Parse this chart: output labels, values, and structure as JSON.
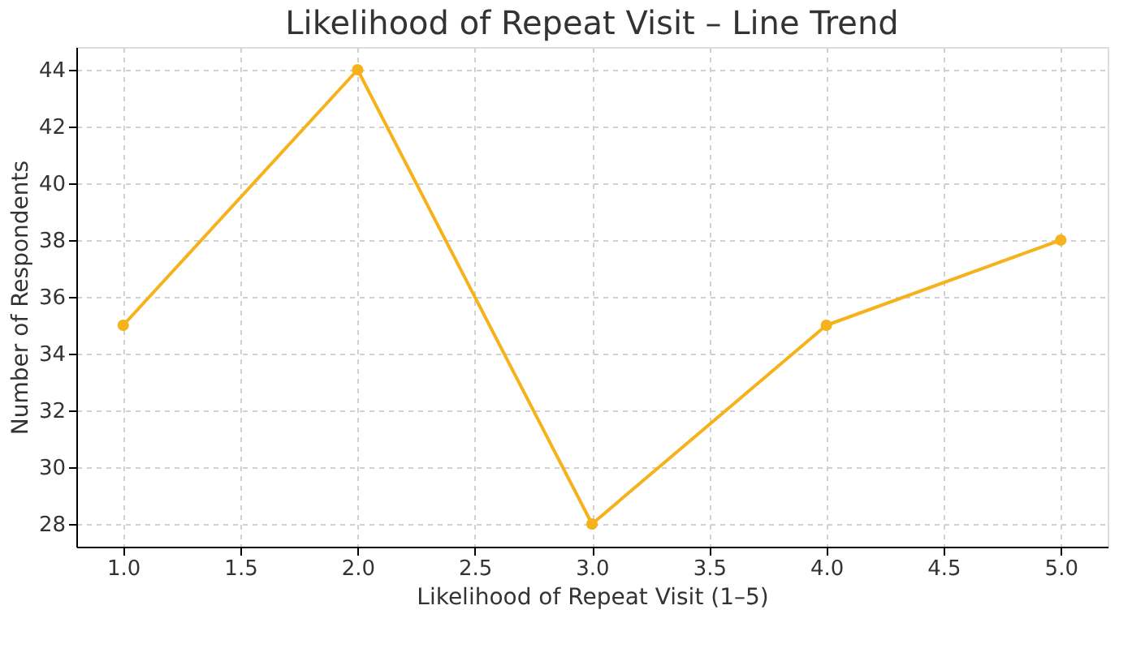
{
  "chart_data": {
    "type": "line",
    "title": "Likelihood of Repeat Visit – Line Trend",
    "xlabel": "Likelihood of Repeat Visit (1–5)",
    "ylabel": "Number of Respondents",
    "x": [
      1,
      2,
      3,
      4,
      5
    ],
    "series": [
      {
        "color": "#f5b21b",
        "values": [
          35,
          44,
          28,
          35,
          38
        ]
      }
    ],
    "xlim": [
      0.8,
      5.2
    ],
    "xticks": [
      {
        "value": 1,
        "label": "1.0"
      },
      {
        "value": 1.5,
        "label": "1.5"
      },
      {
        "value": 2,
        "label": "2.0"
      },
      {
        "value": 2.5,
        "label": "2.5"
      },
      {
        "value": 3,
        "label": "3.0"
      },
      {
        "value": 3.5,
        "label": "3.5"
      },
      {
        "value": 4,
        "label": "4.0"
      },
      {
        "value": 4.5,
        "label": "4.5"
      },
      {
        "value": 5,
        "label": "5.0"
      }
    ],
    "ylim": [
      27.2,
      44.8
    ],
    "yticks": [
      28,
      30,
      32,
      34,
      36,
      38,
      40,
      42,
      44
    ],
    "grid": true,
    "marker": "circle",
    "line_style": "solid"
  }
}
